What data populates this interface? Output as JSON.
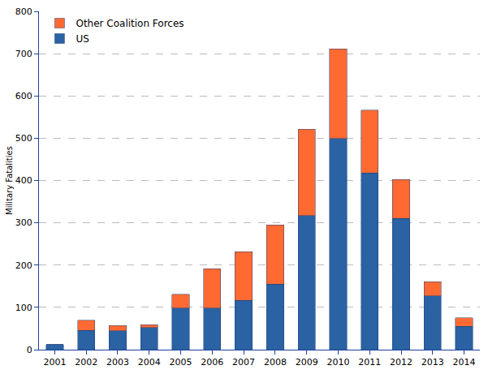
{
  "chart_data": {
    "type": "bar",
    "y_label": "Military Fatalities",
    "categories": [
      "2001",
      "2002",
      "2003",
      "2004",
      "2005",
      "2006",
      "2007",
      "2008",
      "2009",
      "2010",
      "2011",
      "2012",
      "2013",
      "2014"
    ],
    "series": [
      {
        "name": "US",
        "color": "#2a62a3",
        "values": [
          12,
          46,
          45,
          52,
          98,
          98,
          117,
          155,
          317,
          499,
          418,
          310,
          127,
          55
        ]
      },
      {
        "name": "Other Coalition Forces",
        "color": "#ff6a33",
        "values": [
          0,
          24,
          12,
          7,
          33,
          93,
          115,
          140,
          204,
          212,
          148,
          92,
          34,
          20
        ]
      }
    ],
    "stacked": true,
    "ylim": [
      0,
      800
    ],
    "yticks": [
      0,
      100,
      200,
      300,
      400,
      500,
      600,
      700,
      800
    ],
    "grid": true,
    "legend": "top-left"
  }
}
